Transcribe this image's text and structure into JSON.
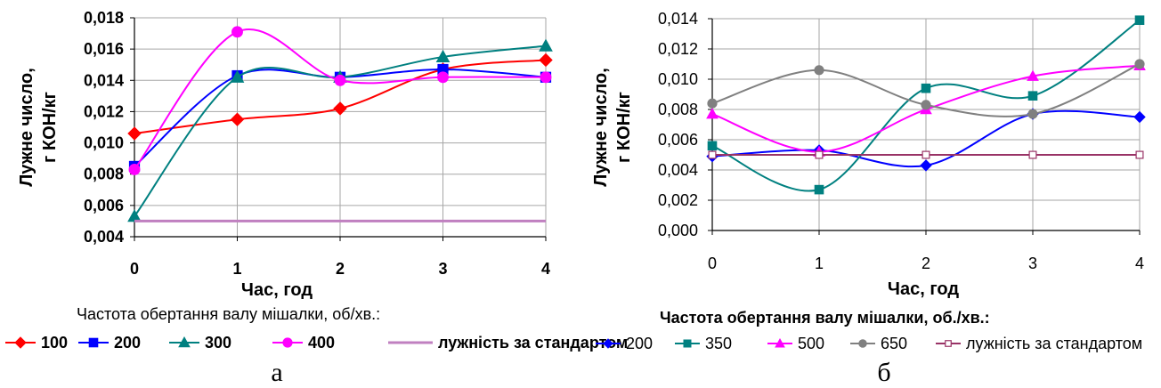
{
  "chart_data": [
    {
      "panel_label": "а",
      "type": "line",
      "xlabel": "Час, год",
      "ylabel": [
        "Лужне число,",
        "г КОН/кг"
      ],
      "x": [
        0,
        1,
        2,
        3,
        4
      ],
      "xlim": [
        0,
        4
      ],
      "ylim": [
        0.004,
        0.018
      ],
      "y_ticks": [
        "0,004",
        "0,006",
        "0,008",
        "0,010",
        "0,012",
        "0,014",
        "0,016",
        "0,018"
      ],
      "x_ticks": [
        "0",
        "1",
        "2",
        "3",
        "4"
      ],
      "grid": true,
      "bold_ticks": true,
      "legend_title": "Частота обертання валу мішалки, об/хв.:",
      "legend_position": "bottom",
      "series": [
        {
          "name": "100",
          "color": "#ff0000",
          "marker": "diamond",
          "values": [
            0.0106,
            0.0115,
            0.0122,
            0.0147,
            0.0153
          ]
        },
        {
          "name": "200",
          "color": "#0000ff",
          "marker": "square",
          "values": [
            0.0085,
            0.0143,
            0.0142,
            0.0147,
            0.0142
          ]
        },
        {
          "name": "300",
          "color": "#008080",
          "marker": "triangle",
          "values": [
            0.0053,
            0.0142,
            0.0142,
            0.0155,
            0.0162
          ]
        },
        {
          "name": "400",
          "color": "#ff00ff",
          "marker": "circle",
          "values": [
            0.0083,
            0.0171,
            0.014,
            0.0142,
            0.0142
          ]
        },
        {
          "name": "лужність за стандартом",
          "color": "#c080c0",
          "marker": "none",
          "values": [
            0.005,
            0.005,
            0.005,
            0.005,
            0.005
          ]
        }
      ]
    },
    {
      "panel_label": "б",
      "type": "line",
      "xlabel": "Час, год",
      "ylabel": [
        "Лужне число,",
        "г КОН/кг"
      ],
      "x": [
        0,
        1,
        2,
        3,
        4
      ],
      "xlim": [
        0,
        4
      ],
      "ylim": [
        0,
        0.014
      ],
      "y_ticks": [
        "0,000",
        "0,002",
        "0,004",
        "0,006",
        "0,008",
        "0,010",
        "0,012",
        "0,014"
      ],
      "x_ticks": [
        "0",
        "1",
        "2",
        "3",
        "4"
      ],
      "grid": true,
      "bold_ticks": false,
      "legend_title": "Частота обертання валу мішалки, об./хв.:",
      "legend_position": "bottom",
      "series": [
        {
          "name": "200",
          "color": "#0000ff",
          "marker": "diamond",
          "values": [
            0.0049,
            0.0053,
            0.0043,
            0.0077,
            0.0075
          ]
        },
        {
          "name": "350",
          "color": "#008080",
          "marker": "square",
          "values": [
            0.0056,
            0.0027,
            0.0094,
            0.0089,
            0.0139
          ]
        },
        {
          "name": "500",
          "color": "#ff00ff",
          "marker": "triangle",
          "values": [
            0.0077,
            0.0052,
            0.008,
            0.0102,
            0.0109
          ]
        },
        {
          "name": "650",
          "color": "#808080",
          "marker": "circle",
          "values": [
            0.0084,
            0.0106,
            0.0083,
            0.0077,
            0.011
          ]
        },
        {
          "name": "лужність за стандартом",
          "color": "#993366",
          "marker": "hollow-square",
          "values": [
            0.005,
            0.005,
            0.005,
            0.005,
            0.005
          ]
        }
      ]
    }
  ]
}
